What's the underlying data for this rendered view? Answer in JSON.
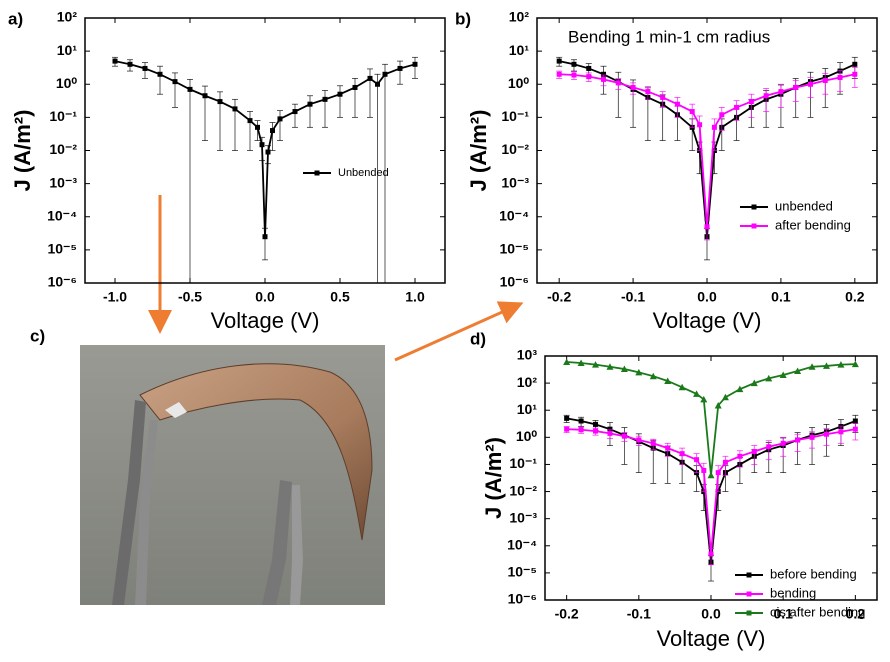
{
  "chart_data": [
    {
      "type": "line",
      "panel_label": "a)",
      "ylog": true,
      "xlabel": "Voltage (V)",
      "ylabel": "J (A/m²)",
      "xlim": [
        -1.2,
        1.2
      ],
      "xticks": [
        {
          "value": -1,
          "label": "-1.0"
        },
        -0.5,
        {
          "value": 0,
          "label": "0.0"
        },
        0.5,
        {
          "value": 1,
          "label": "1.0"
        }
      ],
      "ylim": [
        1e-06,
        100
      ],
      "yticks": [
        {
          "value": 1e-06,
          "label": "10⁻⁶"
        },
        {
          "value": 1e-05,
          "label": "10⁻⁵"
        },
        {
          "value": 0.0001,
          "label": "10⁻⁴"
        },
        {
          "value": 0.001,
          "label": "10⁻³"
        },
        {
          "value": 0.01,
          "label": "10⁻²"
        },
        {
          "value": 0.1,
          "label": "10⁻¹"
        },
        {
          "value": 1,
          "label": "10⁰"
        },
        {
          "value": 10,
          "label": "10¹"
        },
        {
          "value": 100,
          "label": "10²"
        }
      ],
      "legend": "center right",
      "x": [
        -1,
        -0.9,
        -0.8,
        -0.7,
        -0.6,
        -0.5,
        -0.4,
        -0.3,
        -0.2,
        -0.1,
        -0.05,
        -0.02,
        0,
        0.02,
        0.05,
        0.1,
        0.2,
        0.3,
        0.4,
        0.5,
        0.6,
        0.7,
        0.75,
        0.8,
        0.9,
        1
      ],
      "series": [
        {
          "name": "Unbended",
          "color": "#000000",
          "marker": "square",
          "values": [
            5,
            4,
            3,
            2,
            1.2,
            0.7,
            0.45,
            0.3,
            0.18,
            0.08,
            0.05,
            0.015,
            2.5e-05,
            0.009,
            0.04,
            0.09,
            0.15,
            0.25,
            0.35,
            0.5,
            0.8,
            1.5,
            1.0,
            2,
            3,
            4
          ],
          "yerr": [
            1.5,
            1.5,
            1.5,
            1.5,
            1,
            0.7,
            0.43,
            0.29,
            0.17,
            0.07,
            0.03,
            0.01,
            2e-05,
            0.005,
            0.03,
            0.07,
            0.1,
            0.2,
            0.3,
            0.4,
            0.7,
            1.4,
            1.0,
            2,
            2,
            2.5
          ]
        }
      ]
    },
    {
      "type": "line",
      "panel_label": "b)",
      "ylog": true,
      "annotation": "Bending 1 min-1 cm radius",
      "xlabel": "Voltage (V)",
      "ylabel": "J (A/m²)",
      "xlim": [
        -0.23,
        0.23
      ],
      "xticks": [
        -0.2,
        -0.1,
        {
          "value": 0,
          "label": "0.0"
        },
        0.1,
        0.2
      ],
      "ylim": [
        1e-06,
        100
      ],
      "yticks": [
        {
          "value": 1e-06,
          "label": "10⁻⁶"
        },
        {
          "value": 1e-05,
          "label": "10⁻⁵"
        },
        {
          "value": 0.0001,
          "label": "10⁻⁴"
        },
        {
          "value": 0.001,
          "label": "10⁻³"
        },
        {
          "value": 0.01,
          "label": "10⁻²"
        },
        {
          "value": 0.1,
          "label": "10⁻¹"
        },
        {
          "value": 1,
          "label": "10⁰"
        },
        {
          "value": 10,
          "label": "10¹"
        },
        {
          "value": 100,
          "label": "10²"
        }
      ],
      "legend": "lower right",
      "x": [
        -0.2,
        -0.18,
        -0.16,
        -0.14,
        -0.12,
        -0.1,
        -0.08,
        -0.06,
        -0.04,
        -0.02,
        -0.01,
        0,
        0.01,
        0.02,
        0.04,
        0.06,
        0.08,
        0.1,
        0.12,
        0.14,
        0.16,
        0.18,
        0.2
      ],
      "series": [
        {
          "name": "unbended",
          "color": "#000000",
          "marker": "square",
          "values": [
            5,
            4,
            3,
            2,
            1.2,
            0.7,
            0.4,
            0.25,
            0.12,
            0.05,
            0.01,
            2.5e-05,
            0.01,
            0.05,
            0.1,
            0.2,
            0.35,
            0.5,
            0.8,
            1.2,
            1.6,
            2.5,
            4
          ],
          "yerr": [
            1.5,
            1.5,
            1.2,
            1.5,
            1.1,
            0.65,
            0.38,
            0.23,
            0.1,
            0.04,
            0.008,
            2e-05,
            0.008,
            0.04,
            0.08,
            0.15,
            0.3,
            0.45,
            0.7,
            1.1,
            1.4,
            2,
            2.5
          ]
        },
        {
          "name": "after bending",
          "color": "#ff00ff",
          "marker": "square",
          "values": [
            2,
            1.9,
            1.7,
            1.4,
            1.1,
            0.8,
            0.6,
            0.4,
            0.25,
            0.15,
            0.06,
            5e-05,
            0.05,
            0.12,
            0.2,
            0.3,
            0.45,
            0.6,
            0.8,
            1,
            1.3,
            1.6,
            2
          ],
          "yerr": [
            0.5,
            0.5,
            0.5,
            0.5,
            0.4,
            0.3,
            0.25,
            0.2,
            0.15,
            0.1,
            0.05,
            3e-05,
            0.04,
            0.08,
            0.12,
            0.2,
            0.3,
            0.4,
            0.5,
            0.6,
            0.8,
            1,
            1.2
          ]
        }
      ]
    },
    {
      "type": "line",
      "panel_label": "d)",
      "ylog": true,
      "xlabel": "Voltage (V)",
      "ylabel": "J (A/m²)",
      "xlim": [
        -0.23,
        0.23
      ],
      "xticks": [
        -0.2,
        -0.1,
        {
          "value": 0,
          "label": "0.0"
        },
        0.1,
        0.2
      ],
      "ylim": [
        1e-06,
        1000
      ],
      "yticks": [
        {
          "value": 1e-06,
          "label": "10⁻⁶"
        },
        {
          "value": 1e-05,
          "label": "10⁻⁵"
        },
        {
          "value": 0.0001,
          "label": "10⁻⁴"
        },
        {
          "value": 0.001,
          "label": "10⁻³"
        },
        {
          "value": 0.01,
          "label": "10⁻²"
        },
        {
          "value": 0.1,
          "label": "10⁻¹"
        },
        {
          "value": 1,
          "label": "10⁰"
        },
        {
          "value": 10,
          "label": "10¹"
        },
        {
          "value": 100,
          "label": "10²"
        },
        {
          "value": 1000,
          "label": "10³"
        }
      ],
      "legend": "lower right",
      "x": [
        -0.2,
        -0.18,
        -0.16,
        -0.14,
        -0.12,
        -0.1,
        -0.08,
        -0.06,
        -0.04,
        -0.02,
        -0.01,
        0,
        0.01,
        0.02,
        0.04,
        0.06,
        0.08,
        0.1,
        0.12,
        0.14,
        0.16,
        0.18,
        0.2
      ],
      "series": [
        {
          "name": "before bending",
          "color": "#000000",
          "marker": "square",
          "values": [
            5,
            4,
            3,
            2,
            1.2,
            0.7,
            0.4,
            0.25,
            0.12,
            0.05,
            0.01,
            2.5e-05,
            0.01,
            0.05,
            0.1,
            0.2,
            0.35,
            0.5,
            0.8,
            1.2,
            1.6,
            2.5,
            4
          ],
          "yerr": [
            1.5,
            1.5,
            1.2,
            1.5,
            1.1,
            0.65,
            0.38,
            0.23,
            0.1,
            0.04,
            0.008,
            2e-05,
            0.008,
            0.04,
            0.08,
            0.15,
            0.3,
            0.45,
            0.7,
            1.1,
            1.4,
            2,
            2.5
          ]
        },
        {
          "name": "bending",
          "color": "#ff00ff",
          "marker": "square",
          "values": [
            2,
            1.9,
            1.7,
            1.4,
            1.1,
            0.8,
            0.6,
            0.4,
            0.25,
            0.15,
            0.06,
            5e-05,
            0.05,
            0.12,
            0.2,
            0.3,
            0.45,
            0.6,
            0.8,
            1,
            1.3,
            1.6,
            2
          ],
          "yerr": [
            0.5,
            0.5,
            0.5,
            0.5,
            0.4,
            0.3,
            0.25,
            0.2,
            0.15,
            0.1,
            0.05,
            3e-05,
            0.04,
            0.08,
            0.12,
            0.2,
            0.3,
            0.4,
            0.5,
            0.6,
            0.8,
            1,
            1.2
          ]
        },
        {
          "name": "cis after bending",
          "color": "#1a7a1a",
          "marker": "triangle",
          "values": [
            600,
            550,
            480,
            400,
            330,
            250,
            180,
            120,
            70,
            40,
            25,
            0.04,
            15,
            30,
            60,
            100,
            150,
            200,
            280,
            400,
            430,
            480,
            500
          ]
        }
      ]
    }
  ],
  "photo": {
    "panel_label": "c)"
  }
}
